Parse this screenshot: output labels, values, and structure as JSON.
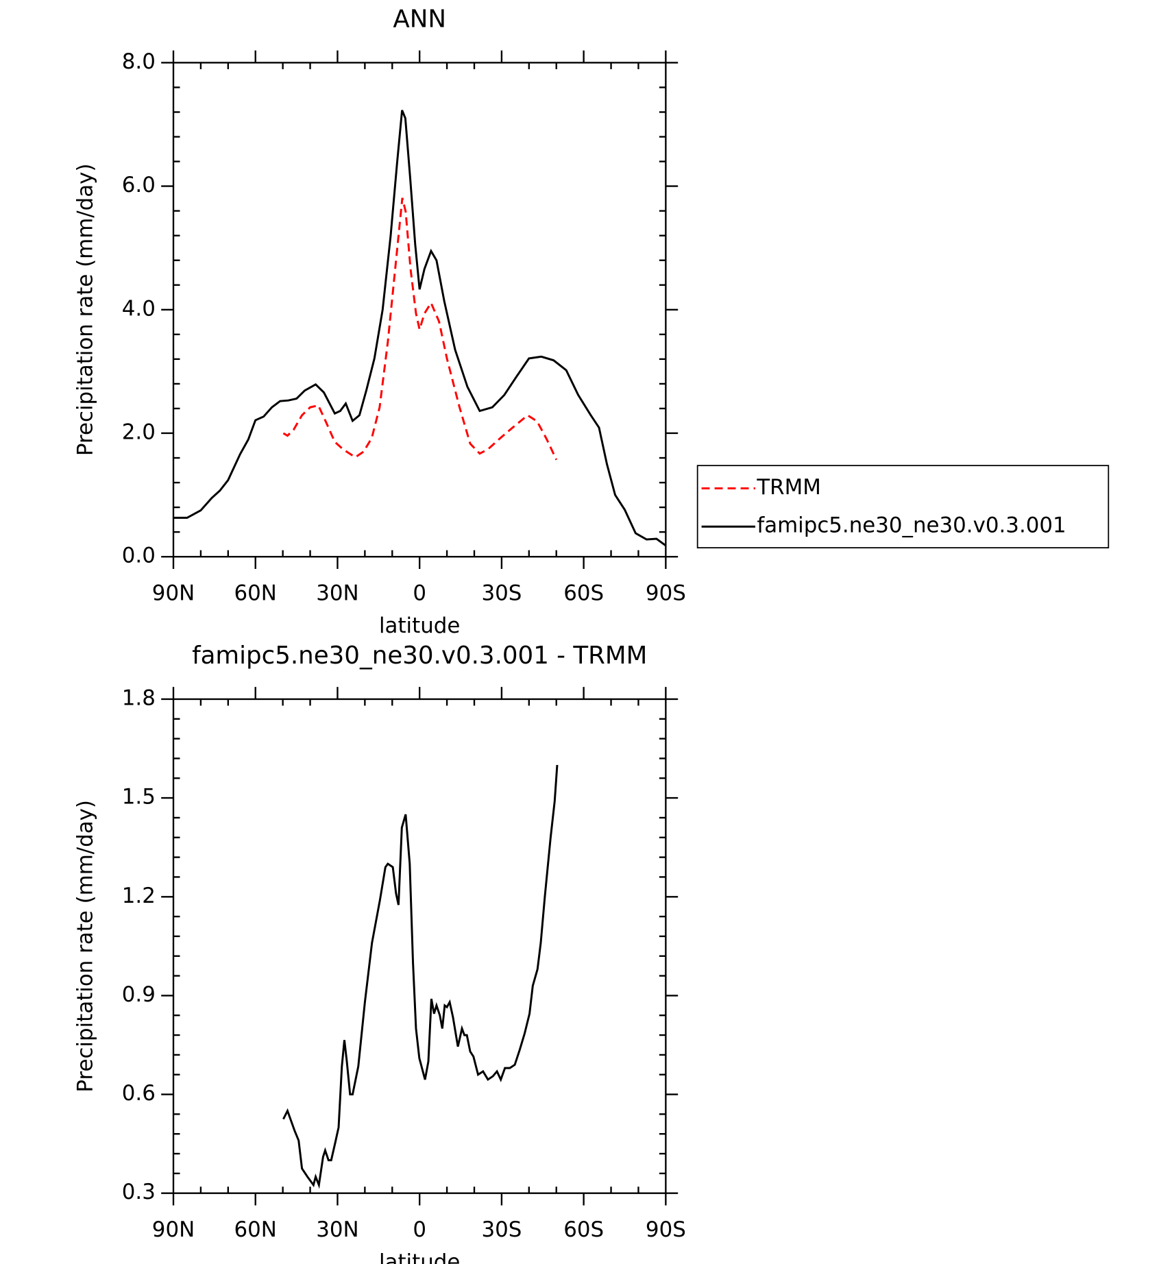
{
  "chart_data": [
    {
      "type": "line",
      "title": "ANN",
      "xlabel": "latitude",
      "ylabel": "Precipitation rate (mm/day)",
      "xlim": [
        90,
        -90
      ],
      "xticks": [
        {
          "value": 90,
          "label": "90N"
        },
        {
          "value": 60,
          "label": "60N"
        },
        {
          "value": 30,
          "label": "30N"
        },
        0,
        {
          "value": -30,
          "label": "30S"
        },
        {
          "value": -60,
          "label": "60S"
        },
        {
          "value": -90,
          "label": "90S"
        }
      ],
      "ylim": [
        0,
        8
      ],
      "yticks": [
        {
          "value": 0,
          "label": "0.0"
        },
        {
          "value": 2,
          "label": "2.0"
        },
        {
          "value": 4,
          "label": "4.0"
        },
        {
          "value": 6,
          "label": "6.0"
        },
        {
          "value": 8,
          "label": "8.0"
        }
      ],
      "legend": "right",
      "series": [
        {
          "name": "TRMM",
          "color": "#ff0000",
          "linestyle": "dashed",
          "x": [
            49.8,
            48.3,
            46,
            43,
            40,
            37,
            34,
            31,
            28,
            23.5,
            20.5,
            17.5,
            14.6,
            11.6,
            8.6,
            6.3,
            5.1,
            3.3,
            1.3,
            0,
            -1.8,
            -4.2,
            -7.1,
            -10,
            -14.6,
            -18.5,
            -22,
            -25,
            -29.5,
            -34,
            -39.5,
            -43,
            -46.5,
            -50
          ],
          "values": [
            2.0,
            1.96,
            2.06,
            2.29,
            2.42,
            2.45,
            2.16,
            1.86,
            1.74,
            1.61,
            1.7,
            1.92,
            2.42,
            3.48,
            4.8,
            5.81,
            5.59,
            4.66,
            3.94,
            3.68,
            3.94,
            4.11,
            3.81,
            3.21,
            2.42,
            1.83,
            1.67,
            1.74,
            1.92,
            2.09,
            2.29,
            2.19,
            1.9,
            1.57
          ]
        },
        {
          "name": "famipc5.ne30_ne30.v0.3.001",
          "color": "#000000",
          "linestyle": "solid",
          "x": [
            90,
            85,
            80,
            76,
            73,
            70,
            65.6,
            62.6,
            60,
            57,
            54,
            51,
            48,
            45,
            42,
            38,
            35,
            31,
            29,
            27,
            24.5,
            22,
            19.5,
            16.5,
            13.5,
            10.6,
            8.2,
            6.4,
            5.2,
            3.4,
            1.6,
            0,
            -1.8,
            -4.2,
            -6.2,
            -9,
            -13,
            -17.5,
            -22,
            -26.6,
            -31,
            -35.5,
            -40,
            -44.5,
            -49,
            -53.6,
            -58,
            -62.6,
            -65.6,
            -68.5,
            -71.5,
            -75,
            -79,
            -83,
            -86.6,
            -90
          ],
          "values": [
            0.63,
            0.63,
            0.75,
            0.95,
            1.07,
            1.24,
            1.66,
            1.9,
            2.21,
            2.27,
            2.42,
            2.52,
            2.53,
            2.56,
            2.69,
            2.79,
            2.66,
            2.32,
            2.36,
            2.48,
            2.2,
            2.29,
            2.69,
            3.21,
            4.0,
            5.19,
            6.38,
            7.23,
            7.1,
            6.11,
            5.06,
            4.33,
            4.66,
            4.95,
            4.8,
            4.14,
            3.35,
            2.75,
            2.36,
            2.42,
            2.62,
            2.92,
            3.21,
            3.24,
            3.18,
            3.02,
            2.62,
            2.29,
            2.09,
            1.5,
            1.0,
            0.76,
            0.38,
            0.28,
            0.29,
            0.18
          ]
        }
      ]
    },
    {
      "type": "line",
      "title": "famipc5.ne30_ne30.v0.3.001 - TRMM",
      "xlabel": "latitude",
      "ylabel": "Precipitation rate (mm/day)",
      "xlim": [
        90,
        -90
      ],
      "xticks": [
        {
          "value": 90,
          "label": "90N"
        },
        {
          "value": 60,
          "label": "60N"
        },
        {
          "value": 30,
          "label": "30N"
        },
        0,
        {
          "value": -30,
          "label": "30S"
        },
        {
          "value": -60,
          "label": "60S"
        },
        {
          "value": -90,
          "label": "90S"
        }
      ],
      "ylim": [
        0.3,
        1.8
      ],
      "yticks": [
        0.3,
        0.6,
        0.9,
        1.2,
        1.5,
        1.8
      ],
      "series": [
        {
          "color": "#000000",
          "linestyle": "solid",
          "x": [
            49.8,
            48.3,
            45.7,
            44.2,
            43,
            41,
            38.8,
            38,
            36.8,
            35.3,
            34.5,
            33.3,
            32.3,
            30.8,
            29.6,
            28.4,
            27.5,
            26.6,
            25.4,
            24.5,
            22.4,
            20,
            17.4,
            14.5,
            12.5,
            11.6,
            9.8,
            8.6,
            7.7,
            6.5,
            5.1,
            3.6,
            2.4,
            1.3,
            0.1,
            -2,
            -3.2,
            -4.3,
            -5.3,
            -6.2,
            -7.4,
            -8.3,
            -9.2,
            -10,
            -11,
            -12.2,
            -14,
            -15.5,
            -16.4,
            -17.3,
            -18.5,
            -19.7,
            -21.4,
            -23.2,
            -25,
            -26.8,
            -28.3,
            -29.7,
            -31.2,
            -33,
            -34.8,
            -36.6,
            -38.4,
            -40.2,
            -41.4,
            -43.1,
            -44.3,
            -45.8,
            -47.9,
            -49.4,
            -50.3
          ],
          "values": [
            0.525,
            0.55,
            0.49,
            0.46,
            0.375,
            0.35,
            0.325,
            0.35,
            0.325,
            0.41,
            0.43,
            0.4,
            0.4,
            0.455,
            0.5,
            0.685,
            0.765,
            0.7,
            0.6,
            0.6,
            0.685,
            0.88,
            1.06,
            1.19,
            1.29,
            1.3,
            1.29,
            1.21,
            1.175,
            1.41,
            1.45,
            1.3,
            1.0,
            0.8,
            0.71,
            0.645,
            0.7,
            0.89,
            0.845,
            0.87,
            0.84,
            0.8,
            0.87,
            0.865,
            0.88,
            0.835,
            0.745,
            0.8,
            0.78,
            0.78,
            0.73,
            0.715,
            0.66,
            0.67,
            0.645,
            0.655,
            0.67,
            0.645,
            0.68,
            0.68,
            0.69,
            0.735,
            0.785,
            0.845,
            0.93,
            0.98,
            1.06,
            1.2,
            1.38,
            1.49,
            1.6
          ]
        }
      ]
    }
  ]
}
